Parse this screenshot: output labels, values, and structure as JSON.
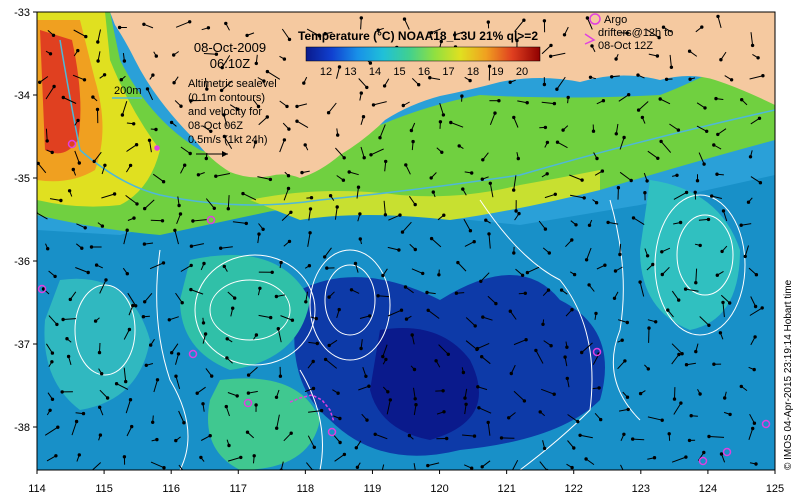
{
  "map": {
    "date_line1": "08-Oct-2009",
    "date_line2": "06:10Z",
    "isobath_label": "200m",
    "altimetry_lines": [
      "Altimetric sealevel",
      "(0.1m contours)",
      "and velocity for",
      "08-Oct 06Z",
      "0.5m/s (1kt 24h)"
    ],
    "argo_lines": [
      "Argo",
      "drifters@12h to",
      "08-Oct 12Z"
    ],
    "credit": "© IMOS 04-Apr-2015 23:19:14 Hobart time",
    "colorbar": {
      "title": "Temperature (°C) NOAA18_L3U 21% ql>=2",
      "ticks": [
        "12",
        "13",
        "14",
        "15",
        "16",
        "17",
        "18",
        "19",
        "20"
      ],
      "colors": [
        "#0a1a8c",
        "#1040d0",
        "#1890e8",
        "#20c0d8",
        "#40d090",
        "#90e040",
        "#e0e020",
        "#f0a020",
        "#e04020",
        "#900000"
      ]
    },
    "x_ticks": [
      "114",
      "115",
      "116",
      "117",
      "118",
      "119",
      "120",
      "121",
      "122",
      "123",
      "124",
      "125"
    ],
    "y_ticks": [
      "-33",
      "-34",
      "-35",
      "-36",
      "-37",
      "-38"
    ],
    "colors": {
      "land": "#f5c9a0",
      "isobath": "#4fb8d8",
      "contour": "#ffffff",
      "argo": "#e040e0"
    }
  }
}
